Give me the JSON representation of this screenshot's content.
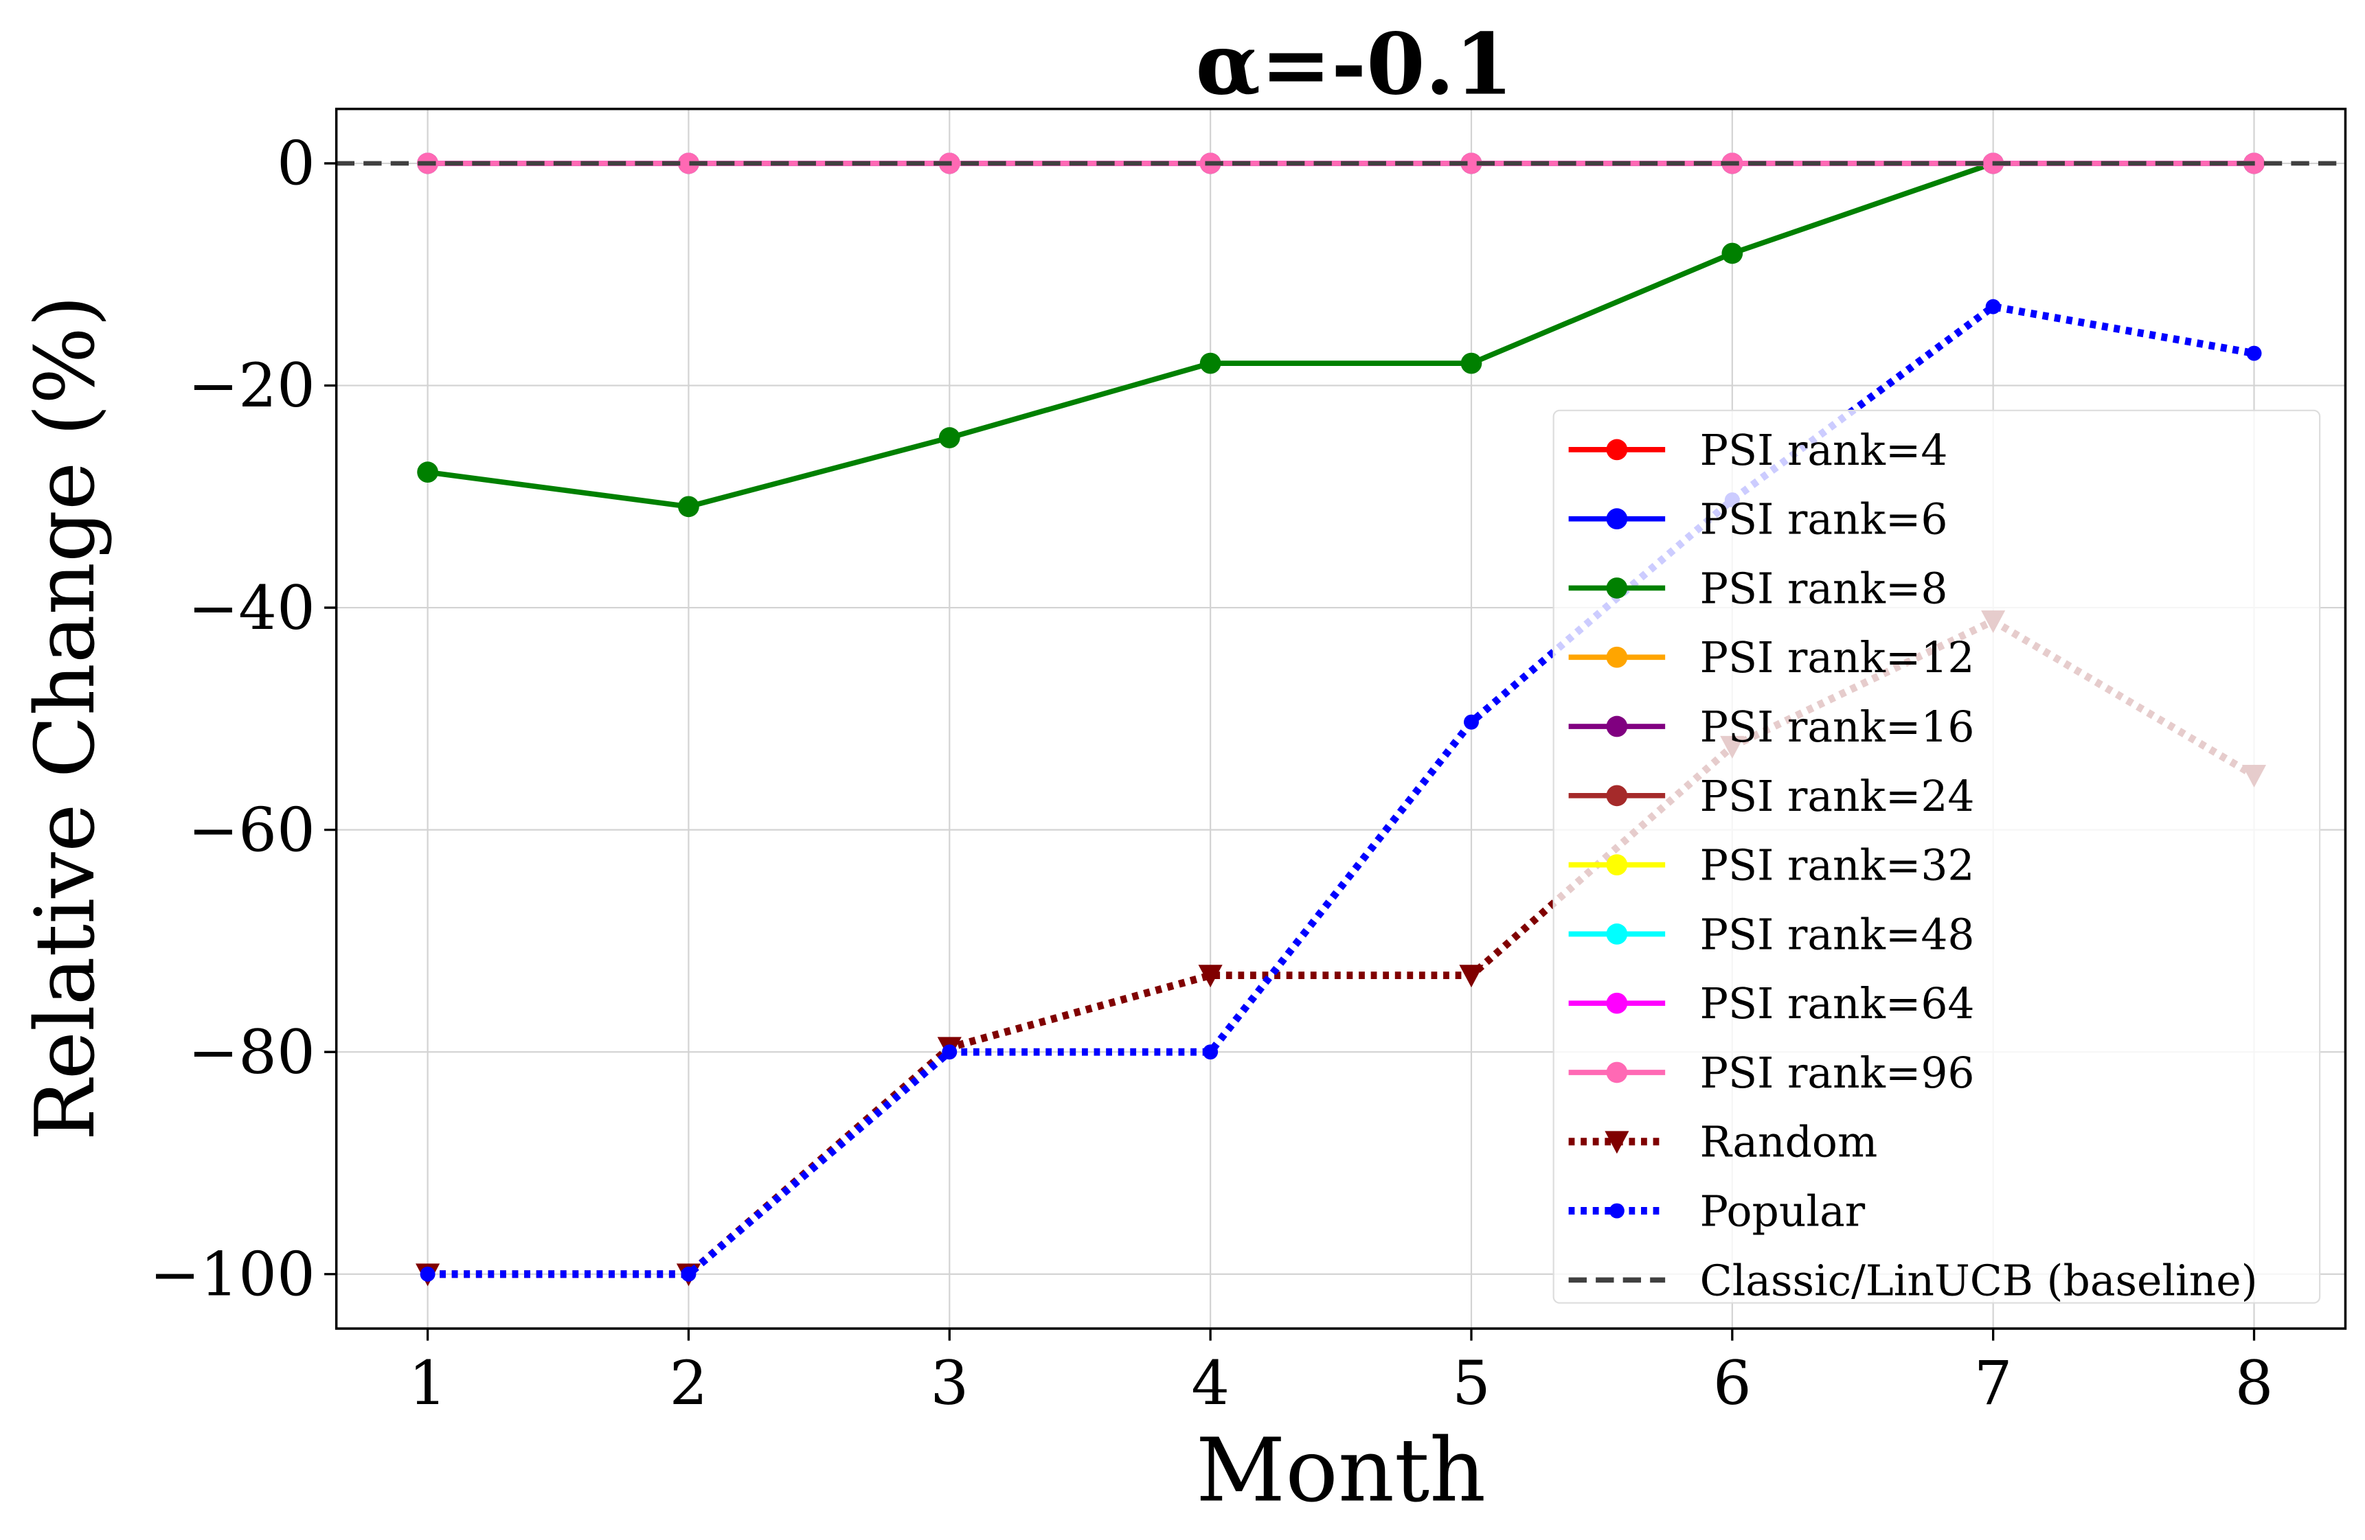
{
  "chart_data": {
    "type": "line",
    "title": "α=-0.1",
    "xlabel": "Month",
    "ylabel": "Relative Change (%)",
    "x": [
      1,
      2,
      3,
      4,
      5,
      6,
      7,
      8
    ],
    "xlim": [
      0.65,
      8.35
    ],
    "ylim": [
      -104.9,
      4.9
    ],
    "xticks": [
      "1",
      "2",
      "3",
      "4",
      "5",
      "6",
      "7",
      "8"
    ],
    "yticks": [
      0,
      -20,
      -40,
      -60,
      -80,
      -100
    ],
    "ytick_labels": [
      "0",
      "−20",
      "−40",
      "−60",
      "−80",
      "−100"
    ],
    "grid": true,
    "legend_position": "center-right",
    "series": [
      {
        "name": "PSI rank=4",
        "color": "#ff0000",
        "style": "solid",
        "marker": "circle",
        "values": [
          0,
          0,
          0,
          0,
          0,
          0,
          0,
          0
        ]
      },
      {
        "name": "PSI rank=6",
        "color": "#0000ff",
        "style": "solid",
        "marker": "circle",
        "values": [
          0,
          0,
          0,
          0,
          0,
          0,
          0,
          0
        ]
      },
      {
        "name": "PSI rank=8",
        "color": "#008000",
        "style": "solid",
        "marker": "circle",
        "values": [
          -27.8,
          -30.9,
          -24.7,
          -18.0,
          -18.0,
          -8.1,
          0,
          0
        ]
      },
      {
        "name": "PSI rank=12",
        "color": "#ffa500",
        "style": "solid",
        "marker": "circle",
        "values": [
          0,
          0,
          0,
          0,
          0,
          0,
          0,
          0
        ]
      },
      {
        "name": "PSI rank=16",
        "color": "#800080",
        "style": "solid",
        "marker": "circle",
        "values": [
          0,
          0,
          0,
          0,
          0,
          0,
          0,
          0
        ]
      },
      {
        "name": "PSI rank=24",
        "color": "#a52a2a",
        "style": "solid",
        "marker": "circle",
        "values": [
          0,
          0,
          0,
          0,
          0,
          0,
          0,
          0
        ]
      },
      {
        "name": "PSI rank=32",
        "color": "#ffff00",
        "style": "solid",
        "marker": "circle",
        "values": [
          0,
          0,
          0,
          0,
          0,
          0,
          0,
          0
        ]
      },
      {
        "name": "PSI rank=48",
        "color": "#00ffff",
        "style": "solid",
        "marker": "circle",
        "values": [
          0,
          0,
          0,
          0,
          0,
          0,
          0,
          0
        ]
      },
      {
        "name": "PSI rank=64",
        "color": "#ff00ff",
        "style": "solid",
        "marker": "circle",
        "values": [
          0,
          0,
          0,
          0,
          0,
          0,
          0,
          0
        ]
      },
      {
        "name": "PSI rank=96",
        "color": "#ff69b4",
        "style": "solid",
        "marker": "circle",
        "values": [
          0,
          0,
          0,
          0,
          0,
          0,
          0,
          0
        ]
      },
      {
        "name": "Random",
        "color": "#800000",
        "style": "dotted",
        "marker": "triangle-down",
        "values": [
          -100,
          -100,
          -79.6,
          -73.1,
          -73.1,
          -52.5,
          -41.2,
          -55.1
        ]
      },
      {
        "name": "Popular",
        "color": "#0000ff",
        "style": "dotted",
        "marker": "small-circle",
        "values": [
          -100,
          -100,
          -80,
          -80,
          -50.3,
          -30.3,
          -12.9,
          -17.1
        ]
      }
    ],
    "baseline": {
      "name": "Classic/LinUCB (baseline)",
      "color": "#404040",
      "style": "dashed",
      "value": 0
    }
  }
}
